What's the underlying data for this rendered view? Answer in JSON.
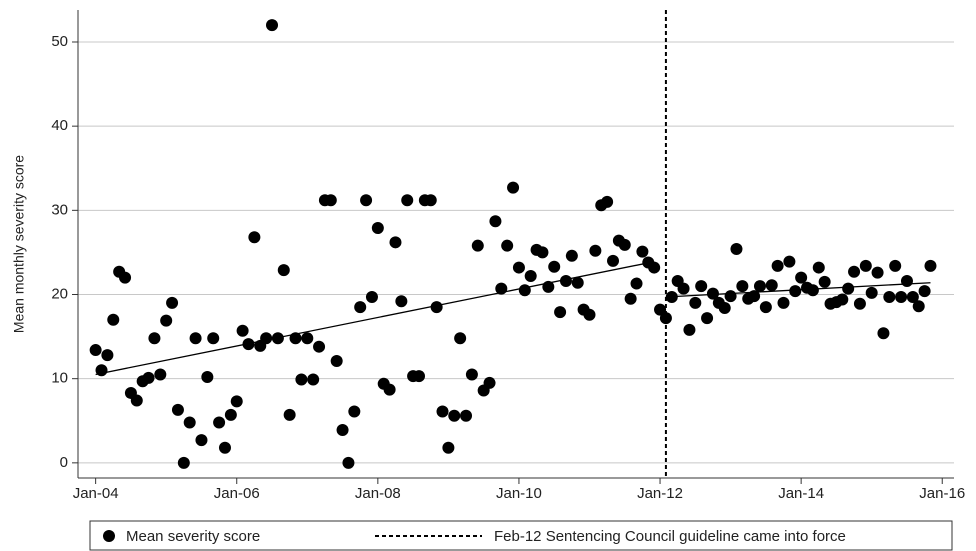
{
  "chart_data": {
    "type": "scatter",
    "y_label": "Mean monthly severity score",
    "ylim": [
      -1.8,
      53.8
    ],
    "yticks": [
      0,
      10,
      20,
      30,
      40,
      50
    ],
    "xlim": [
      "2003-10",
      "2016-03"
    ],
    "xticks": [
      {
        "value": "2004-01",
        "label": "Jan-04"
      },
      {
        "value": "2006-01",
        "label": "Jan-06"
      },
      {
        "value": "2008-01",
        "label": "Jan-08"
      },
      {
        "value": "2010-01",
        "label": "Jan-10"
      },
      {
        "value": "2012-01",
        "label": "Jan-12"
      },
      {
        "value": "2014-01",
        "label": "Jan-14"
      },
      {
        "value": "2016-01",
        "label": "Jan-16"
      }
    ],
    "grid": true,
    "x": [
      "2004-01",
      "2004-02",
      "2004-03",
      "2004-04",
      "2004-05",
      "2004-06",
      "2004-07",
      "2004-08",
      "2004-09",
      "2004-10",
      "2004-11",
      "2004-12",
      "2005-01",
      "2005-02",
      "2005-03",
      "2005-04",
      "2005-05",
      "2005-06",
      "2005-07",
      "2005-08",
      "2005-09",
      "2005-10",
      "2005-11",
      "2005-12",
      "2006-01",
      "2006-02",
      "2006-03",
      "2006-04",
      "2006-05",
      "2006-06",
      "2006-07",
      "2006-08",
      "2006-09",
      "2006-10",
      "2006-11",
      "2006-12",
      "2007-01",
      "2007-02",
      "2007-03",
      "2007-04",
      "2007-05",
      "2007-06",
      "2007-07",
      "2007-08",
      "2007-09",
      "2007-10",
      "2007-11",
      "2007-12",
      "2008-01",
      "2008-02",
      "2008-03",
      "2008-04",
      "2008-05",
      "2008-06",
      "2008-07",
      "2008-08",
      "2008-09",
      "2008-10",
      "2008-11",
      "2008-12",
      "2009-01",
      "2009-02",
      "2009-03",
      "2009-04",
      "2009-05",
      "2009-06",
      "2009-07",
      "2009-08",
      "2009-09",
      "2009-10",
      "2009-11",
      "2009-12",
      "2010-01",
      "2010-02",
      "2010-03",
      "2010-04",
      "2010-05",
      "2010-06",
      "2010-07",
      "2010-08",
      "2010-09",
      "2010-10",
      "2010-11",
      "2010-12",
      "2011-01",
      "2011-02",
      "2011-03",
      "2011-04",
      "2011-05",
      "2011-06",
      "2011-07",
      "2011-08",
      "2011-09",
      "2011-10",
      "2011-11",
      "2011-12",
      "2012-01",
      "2012-02",
      "2012-03",
      "2012-04",
      "2012-05",
      "2012-06",
      "2012-07",
      "2012-08",
      "2012-09",
      "2012-10",
      "2012-11",
      "2012-12",
      "2013-01",
      "2013-02",
      "2013-03",
      "2013-04",
      "2013-05",
      "2013-06",
      "2013-07",
      "2013-08",
      "2013-09",
      "2013-10",
      "2013-11",
      "2013-12",
      "2014-01",
      "2014-02",
      "2014-03",
      "2014-04",
      "2014-05",
      "2014-06",
      "2014-07",
      "2014-08",
      "2014-09",
      "2014-10",
      "2014-11",
      "2014-12",
      "2015-01",
      "2015-02",
      "2015-03",
      "2015-04",
      "2015-05",
      "2015-06",
      "2015-07",
      "2015-08",
      "2015-09",
      "2015-10",
      "2015-11"
    ],
    "series": [
      {
        "name": "Mean severity score",
        "color": "#000000",
        "values": [
          13.4,
          11.0,
          12.8,
          17.0,
          22.7,
          22.0,
          8.3,
          7.4,
          9.7,
          10.1,
          14.8,
          10.5,
          16.9,
          19.0,
          6.3,
          0,
          4.8,
          14.8,
          2.7,
          10.2,
          14.8,
          4.8,
          1.8,
          5.7,
          7.3,
          15.7,
          14.1,
          26.8,
          13.9,
          14.8,
          52,
          14.8,
          22.9,
          5.7,
          14.8,
          9.9,
          14.8,
          9.9,
          13.8,
          31.2,
          31.2,
          12.1,
          3.9,
          0,
          6.1,
          18.5,
          31.2,
          19.7,
          27.9,
          9.4,
          8.7,
          26.2,
          19.2,
          31.2,
          10.3,
          10.3,
          31.2,
          31.2,
          18.5,
          6.1,
          1.8,
          5.6,
          14.8,
          5.6,
          10.5,
          25.8,
          8.6,
          9.5,
          28.7,
          20.7,
          25.8,
          32.7,
          23.2,
          20.5,
          22.2,
          25.3,
          25.0,
          20.9,
          23.3,
          17.9,
          21.6,
          24.6,
          21.4,
          18.2,
          17.6,
          25.2,
          30.6,
          31.0,
          24.0,
          26.4,
          25.9,
          19.5,
          21.3,
          25.1,
          23.8,
          23.2,
          18.2,
          17.2,
          19.7,
          21.6,
          20.7,
          15.8,
          19.0,
          21.0,
          17.2,
          20.1,
          19.0,
          18.4,
          19.8,
          25.4,
          21.0,
          19.5,
          19.8,
          21.0,
          18.5,
          21.1,
          23.4,
          19.0,
          23.9,
          20.4,
          22.0,
          20.8,
          20.5,
          23.2,
          21.5,
          18.9,
          19.1,
          19.4,
          20.7,
          22.7,
          18.9,
          23.4,
          20.2,
          22.6,
          15.4,
          19.7,
          23.4,
          19.7,
          21.6,
          19.7,
          18.6,
          20.4,
          23.4
        ]
      }
    ],
    "trend_lines": [
      {
        "x": [
          "2004-01",
          "2011-12"
        ],
        "values": [
          10.5,
          23.9
        ]
      },
      {
        "x": [
          "2012-02",
          "2015-11"
        ],
        "values": [
          19.7,
          21.4
        ]
      }
    ],
    "guideline": {
      "x": "2012-02",
      "label": "Feb-12 Sentencing Council guideline came into force"
    },
    "legend": "bottom"
  }
}
